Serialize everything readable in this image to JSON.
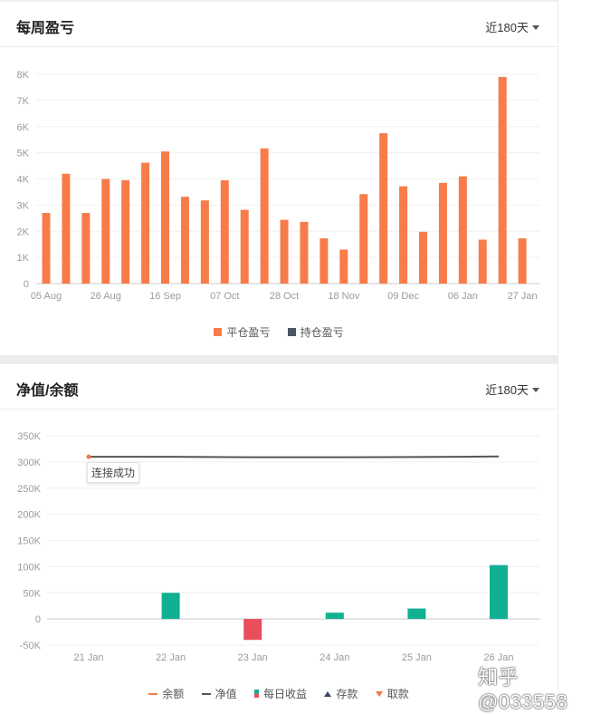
{
  "weekly_panel": {
    "title": "每周盈亏",
    "range_label": "近180天",
    "legend": [
      {
        "label": "平仓盈亏",
        "color": "#f87c4a"
      },
      {
        "label": "持仓盈亏",
        "color": "#4a5566"
      }
    ]
  },
  "equity_panel": {
    "title": "净值/余额",
    "range_label": "近180天",
    "tooltip_text": "连接成功",
    "legend": [
      {
        "label": "余额",
        "color": "#f07a45",
        "shape": "line"
      },
      {
        "label": "净值",
        "color": "#555555",
        "shape": "line"
      },
      {
        "label": "每日收益",
        "color": "#11b092",
        "shape": "square"
      },
      {
        "label": "存款",
        "color": "#3a4a5c",
        "shape": "tri-up"
      },
      {
        "label": "取款",
        "color": "#f07a45",
        "shape": "tri-down"
      }
    ]
  },
  "watermark": "知乎 @033558",
  "chart_data": [
    {
      "type": "bar",
      "title": "每周盈亏",
      "y_ticks": [
        "0",
        "1K",
        "2K",
        "3K",
        "4K",
        "5K",
        "6K",
        "7K",
        "8K"
      ],
      "ylim": [
        0,
        8000
      ],
      "x_tick_labels": [
        "05 Aug",
        "26 Aug",
        "16 Sep",
        "07 Oct",
        "28 Oct",
        "18 Nov",
        "09 Dec",
        "06 Jan",
        "27 Jan"
      ],
      "series": [
        {
          "name": "平仓盈亏",
          "color": "#f87c4a",
          "values": [
            2700,
            4200,
            2700,
            4000,
            3950,
            4620,
            5050,
            3320,
            3180,
            3950,
            2820,
            5170,
            2440,
            2360,
            1730,
            1300,
            3420,
            5750,
            3720,
            1980,
            3850,
            4100,
            1680,
            7900,
            1730
          ]
        },
        {
          "name": "持仓盈亏",
          "color": "#4a5566",
          "values": []
        }
      ],
      "grid": true
    },
    {
      "type": "line",
      "title": "净值/余额",
      "categories": [
        "21 Jan",
        "22 Jan",
        "23 Jan",
        "24 Jan",
        "25 Jan",
        "26 Jan"
      ],
      "y_ticks": [
        "-50K",
        "0",
        "50K",
        "100K",
        "150K",
        "200K",
        "250K",
        "300K",
        "350K"
      ],
      "ylim": [
        -50000,
        350000
      ],
      "series": [
        {
          "name": "净值",
          "color": "#555555",
          "values": [
            310000,
            310000,
            309000,
            309000,
            309500,
            310500
          ]
        },
        {
          "name": "每日收益",
          "color": "#11b092",
          "negative_color": "#e94e5d",
          "values": [
            0,
            50000,
            -40000,
            12000,
            20000,
            103000
          ]
        }
      ],
      "grid": true
    }
  ]
}
